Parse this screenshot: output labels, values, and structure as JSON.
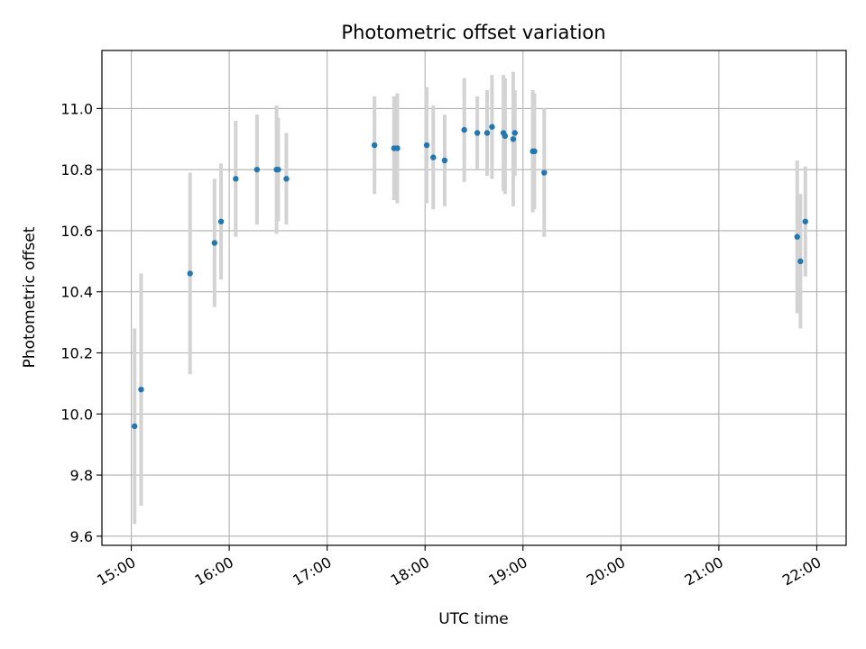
{
  "chart_data": {
    "type": "scatter",
    "title": "Photometric offset variation",
    "xlabel": "UTC time",
    "ylabel": "Photometric offset",
    "xlim": [
      "14:42",
      "22:18"
    ],
    "ylim": [
      9.57,
      11.19
    ],
    "x_ticks": [
      "15:00",
      "16:00",
      "17:00",
      "18:00",
      "19:00",
      "20:00",
      "21:00",
      "22:00"
    ],
    "y_ticks": [
      "9.6",
      "9.8",
      "10.0",
      "10.2",
      "10.4",
      "10.6",
      "10.8",
      "11.0"
    ],
    "grid": true,
    "colors": {
      "point": "#1f77b4",
      "errorbar": "#d3d3d3",
      "grid": "#b0b0b0"
    },
    "points": [
      {
        "time": "15:02",
        "y": 9.96,
        "err": 0.32
      },
      {
        "time": "15:06",
        "y": 10.08,
        "err": 0.38
      },
      {
        "time": "15:36",
        "y": 10.46,
        "err": 0.33
      },
      {
        "time": "15:51",
        "y": 10.56,
        "err": 0.21
      },
      {
        "time": "15:55",
        "y": 10.63,
        "err": 0.19
      },
      {
        "time": "16:04",
        "y": 10.77,
        "err": 0.19
      },
      {
        "time": "16:17",
        "y": 10.8,
        "err": 0.18
      },
      {
        "time": "16:29",
        "y": 10.8,
        "err": 0.21
      },
      {
        "time": "16:30",
        "y": 10.8,
        "err": 0.17
      },
      {
        "time": "16:35",
        "y": 10.77,
        "err": 0.15
      },
      {
        "time": "17:29",
        "y": 10.88,
        "err": 0.16
      },
      {
        "time": "17:41",
        "y": 10.87,
        "err": 0.17
      },
      {
        "time": "17:43",
        "y": 10.87,
        "err": 0.18
      },
      {
        "time": "18:01",
        "y": 10.88,
        "err": 0.19
      },
      {
        "time": "18:05",
        "y": 10.84,
        "err": 0.17
      },
      {
        "time": "18:12",
        "y": 10.83,
        "err": 0.15
      },
      {
        "time": "18:24",
        "y": 10.93,
        "err": 0.17
      },
      {
        "time": "18:32",
        "y": 10.92,
        "err": 0.12
      },
      {
        "time": "18:38",
        "y": 10.92,
        "err": 0.14
      },
      {
        "time": "18:41",
        "y": 10.94,
        "err": 0.17
      },
      {
        "time": "18:48",
        "y": 10.92,
        "err": 0.19
      },
      {
        "time": "18:49",
        "y": 10.91,
        "err": 0.19
      },
      {
        "time": "18:54",
        "y": 10.9,
        "err": 0.22
      },
      {
        "time": "18:55",
        "y": 10.92,
        "err": 0.14
      },
      {
        "time": "19:06",
        "y": 10.86,
        "err": 0.2
      },
      {
        "time": "19:07",
        "y": 10.86,
        "err": 0.19
      },
      {
        "time": "19:13",
        "y": 10.79,
        "err": 0.21
      },
      {
        "time": "21:48",
        "y": 10.58,
        "err": 0.25
      },
      {
        "time": "21:50",
        "y": 10.5,
        "err": 0.22
      },
      {
        "time": "21:53",
        "y": 10.63,
        "err": 0.18
      }
    ]
  }
}
